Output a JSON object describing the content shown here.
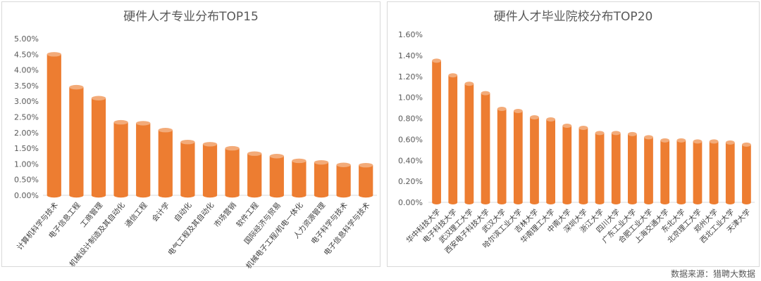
{
  "source_note": "数据来源：猎聘大数据",
  "chart_data": [
    {
      "type": "bar",
      "title": "硬件人才专业分布TOP15",
      "color": "#ED7D31",
      "ylim": [
        0,
        5
      ],
      "yticks": [
        "0.00%",
        "0.50%",
        "1.00%",
        "1.50%",
        "2.00%",
        "2.50%",
        "3.00%",
        "3.50%",
        "4.00%",
        "4.50%",
        "5.00%"
      ],
      "categories": [
        "计算机科学与技术",
        "电子信息工程",
        "工商管理",
        "机械设计制造及其自动化",
        "通信工程",
        "会计学",
        "自动化",
        "电气工程及其自动化",
        "市场营销",
        "软件工程",
        "国际经济与贸易",
        "机械电子工程/机电一体化",
        "人力资源管理",
        "电子科学与技术",
        "电子信息科学与技术"
      ],
      "values": [
        4.5,
        3.45,
        3.1,
        2.33,
        2.3,
        2.08,
        1.7,
        1.63,
        1.5,
        1.33,
        1.25,
        1.1,
        1.05,
        0.97,
        0.96
      ]
    },
    {
      "type": "bar",
      "title": "硬件人才毕业院校分布TOP20",
      "color": "#ED7D31",
      "ylim": [
        0,
        1.6
      ],
      "yticks": [
        "0.00%",
        "0.20%",
        "0.40%",
        "0.60%",
        "0.80%",
        "1.00%",
        "1.20%",
        "1.40%",
        "1.60%"
      ],
      "categories": [
        "华中科技大学",
        "电子科技大学",
        "武汉理工大学",
        "西安电子科技大学",
        "武汉大学",
        "哈尔滨工业大学",
        "吉林大学",
        "华南理工大学",
        "中南大学",
        "深圳大学",
        "浙江大学",
        "四川大学",
        "广东工业大学",
        "合肥工业大学",
        "上海交通大学",
        "东北大学",
        "北京理工大学",
        "郑州大学",
        "西北工业大学",
        "天津大学"
      ],
      "values": [
        1.35,
        1.21,
        1.13,
        1.04,
        0.89,
        0.87,
        0.81,
        0.79,
        0.73,
        0.71,
        0.66,
        0.66,
        0.65,
        0.62,
        0.59,
        0.59,
        0.58,
        0.58,
        0.57,
        0.55
      ]
    }
  ]
}
